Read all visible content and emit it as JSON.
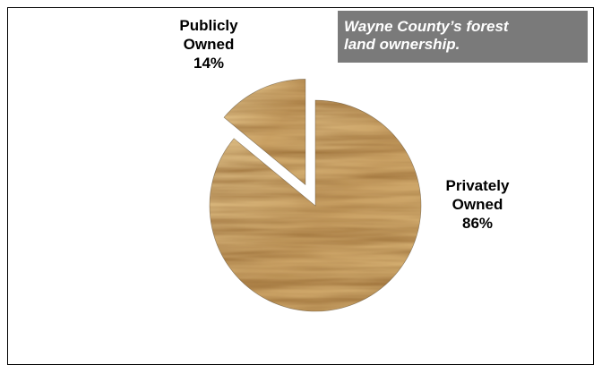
{
  "chart_data": {
    "type": "pie",
    "title_lines": [
      "Wayne County’s forest",
      "land ownership."
    ],
    "slices": [
      {
        "label_lines": [
          "Publicly",
          "Owned"
        ],
        "value": 14,
        "value_label": "14%",
        "exploded": true
      },
      {
        "label_lines": [
          "Privately",
          "Owned"
        ],
        "value": 86,
        "value_label": "86%",
        "exploded": false
      }
    ],
    "fill_texture": "oak-wood-grain",
    "colors": {
      "title_background": "#7a7a7a",
      "title_text": "#ffffff",
      "wood_base": "#c9a063",
      "wood_light": "#e2c48c",
      "wood_dark": "#9c6f35",
      "slice_edge": "#3a2a12"
    }
  }
}
